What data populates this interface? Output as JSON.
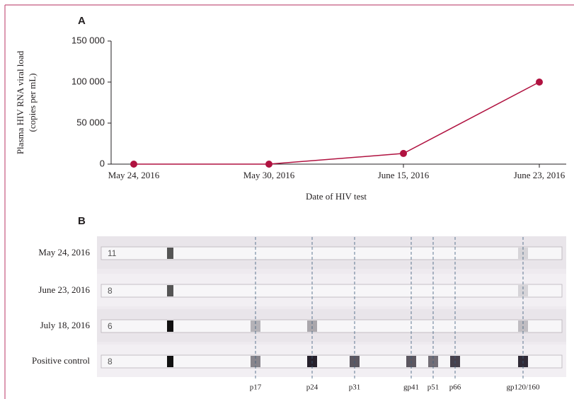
{
  "chart_data": {
    "type": "line",
    "panel_label": "A",
    "y_label": [
      "Plasma HIV RNA viral load",
      "(copies per mL)"
    ],
    "x_label": "Date of HIV test",
    "categories": [
      "May 24, 2016",
      "May 30, 2016",
      "June 15, 2016",
      "June 23, 2016"
    ],
    "values": [
      0,
      0,
      13000,
      100000
    ],
    "color": "#b01240",
    "ylim": [
      0,
      150000
    ],
    "yticks": [
      0,
      {
        "value": 50000,
        "label": "50 000"
      },
      {
        "value": 100000,
        "label": "100 000"
      },
      {
        "value": 150000,
        "label": "150 000"
      }
    ]
  },
  "panel_b": {
    "panel_label": "B",
    "rows": [
      {
        "label": "May 24, 2016",
        "strip_number": "11"
      },
      {
        "label": "June 23, 2016",
        "strip_number": "8"
      },
      {
        "label": "July 18, 2016",
        "strip_number": "6"
      },
      {
        "label": "Positive control",
        "strip_number": "8"
      }
    ],
    "bands": [
      "p17",
      "p24",
      "p31",
      "gp41",
      "p51",
      "p66",
      "gp120/160"
    ]
  }
}
